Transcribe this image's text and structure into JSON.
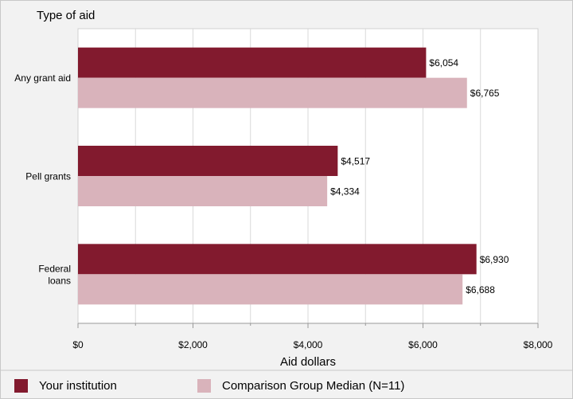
{
  "chart_data": {
    "type": "bar",
    "orientation": "horizontal",
    "y_axis_title": "Type of aid",
    "xlabel": "Aid dollars",
    "categories": [
      {
        "lines": [
          "Any grant aid"
        ]
      },
      {
        "lines": [
          "Pell grants"
        ]
      },
      {
        "lines": [
          "Federal",
          "loans"
        ]
      }
    ],
    "series": [
      {
        "name": "Your institution",
        "color": "#821a2e",
        "values": [
          6054,
          4517,
          6930
        ],
        "labels": [
          "$6,054",
          "$4,517",
          "$6,930"
        ]
      },
      {
        "name": "Comparison Group Median (N=11)",
        "color": "#d9b3bb",
        "values": [
          6765,
          4334,
          6688
        ],
        "labels": [
          "$6,765",
          "$4,334",
          "$6,688"
        ]
      }
    ],
    "xlim": [
      0,
      8000
    ],
    "xticks": [
      0,
      2000,
      4000,
      6000,
      8000
    ],
    "xtick_labels": [
      "$0",
      "$2,000",
      "$4,000",
      "$6,000",
      "$8,000"
    ],
    "grid": true,
    "legend_position": "bottom"
  }
}
